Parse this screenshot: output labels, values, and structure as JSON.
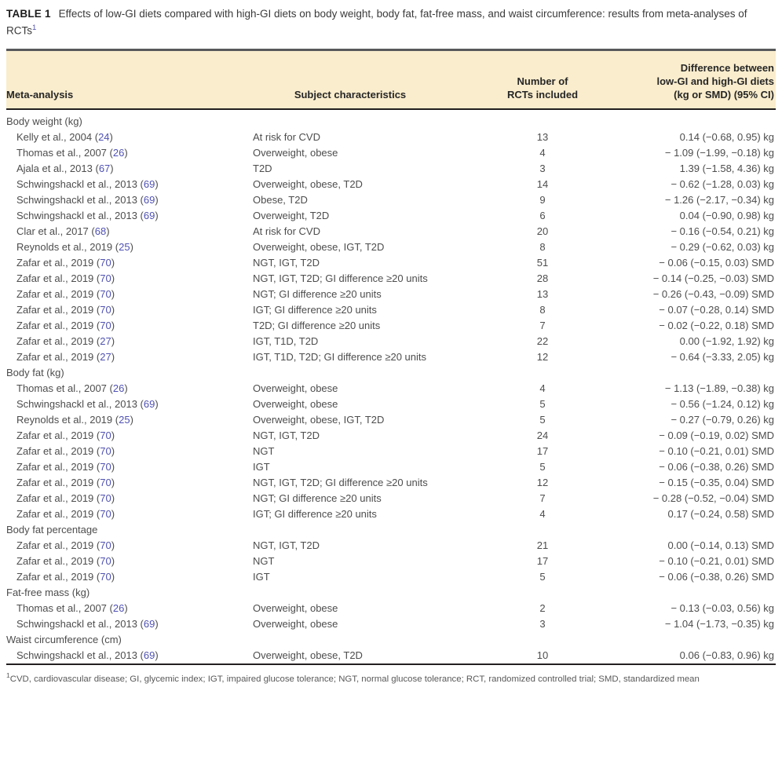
{
  "caption": {
    "label": "TABLE 1",
    "text": "Effects of low-GI diets compared with high-GI diets on body weight, body fat, fat-free mass, and waist circumference: results from meta-analyses of RCTs",
    "footnote_ref": "1"
  },
  "table": {
    "columns": [
      "Meta-analysis",
      "Subject characteristics",
      "Number of\nRCTs included",
      "Difference between\nlow-GI and high-GI diets\n(kg or SMD) (95% CI)"
    ],
    "sections": [
      {
        "header": "Body weight (kg)",
        "rows": [
          {
            "study": "Kelly et al., 2004",
            "ref": "24",
            "subjects": "At risk for CVD",
            "n_rcts": "13",
            "difference": "0.14 (−0.68, 0.95) kg"
          },
          {
            "study": "Thomas et al., 2007",
            "ref": "26",
            "subjects": "Overweight, obese",
            "n_rcts": "4",
            "difference": "− 1.09 (−1.99, −0.18) kg"
          },
          {
            "study": "Ajala et al., 2013",
            "ref": "67",
            "subjects": "T2D",
            "n_rcts": "3",
            "difference": "1.39 (−1.58, 4.36) kg"
          },
          {
            "study": "Schwingshackl et al., 2013",
            "ref": "69",
            "subjects": "Overweight, obese, T2D",
            "n_rcts": "14",
            "difference": "− 0.62 (−1.28, 0.03) kg"
          },
          {
            "study": "Schwingshackl et al., 2013",
            "ref": "69",
            "subjects": "Obese, T2D",
            "n_rcts": "9",
            "difference": "− 1.26 (−2.17, −0.34) kg"
          },
          {
            "study": "Schwingshackl et al., 2013",
            "ref": "69",
            "subjects": "Overweight, T2D",
            "n_rcts": "6",
            "difference": "0.04 (−0.90, 0.98) kg"
          },
          {
            "study": "Clar et al., 2017",
            "ref": "68",
            "subjects": "At risk for CVD",
            "n_rcts": "20",
            "difference": "− 0.16 (−0.54, 0.21) kg"
          },
          {
            "study": "Reynolds et al., 2019",
            "ref": "25",
            "subjects": "Overweight, obese, IGT, T2D",
            "n_rcts": "8",
            "difference": "− 0.29 (−0.62, 0.03) kg"
          },
          {
            "study": "Zafar et al., 2019",
            "ref": "70",
            "subjects": "NGT, IGT, T2D",
            "n_rcts": "51",
            "difference": "− 0.06 (−0.15, 0.03) SMD"
          },
          {
            "study": "Zafar et al., 2019",
            "ref": "70",
            "subjects": "NGT, IGT, T2D; GI difference ≥20 units",
            "n_rcts": "28",
            "difference": "− 0.14 (−0.25, −0.03) SMD"
          },
          {
            "study": "Zafar et al., 2019",
            "ref": "70",
            "subjects": "NGT; GI difference ≥20 units",
            "n_rcts": "13",
            "difference": "− 0.26 (−0.43, −0.09) SMD"
          },
          {
            "study": "Zafar et al., 2019",
            "ref": "70",
            "subjects": "IGT; GI difference ≥20 units",
            "n_rcts": "8",
            "difference": "− 0.07 (−0.28, 0.14) SMD"
          },
          {
            "study": "Zafar et al., 2019",
            "ref": "70",
            "subjects": "T2D; GI difference ≥20 units",
            "n_rcts": "7",
            "difference": "− 0.02 (−0.22, 0.18) SMD"
          },
          {
            "study": "Zafar et al., 2019",
            "ref": "27",
            "subjects": "IGT, T1D, T2D",
            "n_rcts": "22",
            "difference": "0.00 (−1.92, 1.92) kg"
          },
          {
            "study": "Zafar et al., 2019",
            "ref": "27",
            "subjects": "IGT, T1D, T2D; GI difference ≥20 units",
            "n_rcts": "12",
            "difference": "− 0.64 (−3.33, 2.05) kg"
          }
        ]
      },
      {
        "header": "Body fat (kg)",
        "rows": [
          {
            "study": "Thomas et al., 2007",
            "ref": "26",
            "subjects": "Overweight, obese",
            "n_rcts": "4",
            "difference": "− 1.13 (−1.89, −0.38) kg"
          },
          {
            "study": "Schwingshackl et al., 2013",
            "ref": "69",
            "subjects": "Overweight, obese",
            "n_rcts": "5",
            "difference": "− 0.56 (−1.24, 0.12) kg"
          },
          {
            "study": "Reynolds et al., 2019",
            "ref": "25",
            "subjects": "Overweight, obese, IGT, T2D",
            "n_rcts": "5",
            "difference": "− 0.27 (−0.79, 0.26) kg"
          },
          {
            "study": "Zafar et al., 2019",
            "ref": "70",
            "subjects": "NGT, IGT, T2D",
            "n_rcts": "24",
            "difference": "− 0.09 (−0.19, 0.02) SMD"
          },
          {
            "study": "Zafar et al., 2019",
            "ref": "70",
            "subjects": "NGT",
            "n_rcts": "17",
            "difference": "− 0.10 (−0.21, 0.01) SMD"
          },
          {
            "study": "Zafar et al., 2019",
            "ref": "70",
            "subjects": "IGT",
            "n_rcts": "5",
            "difference": "− 0.06 (−0.38, 0.26) SMD"
          },
          {
            "study": "Zafar et al., 2019",
            "ref": "70",
            "subjects": "NGT, IGT, T2D; GI difference ≥20 units",
            "n_rcts": "12",
            "difference": "− 0.15 (−0.35, 0.04) SMD"
          },
          {
            "study": "Zafar et al., 2019",
            "ref": "70",
            "subjects": "NGT; GI difference ≥20 units",
            "n_rcts": "7",
            "difference": "− 0.28 (−0.52, −0.04) SMD"
          },
          {
            "study": "Zafar et al., 2019",
            "ref": "70",
            "subjects": "IGT; GI difference ≥20 units",
            "n_rcts": "4",
            "difference": "0.17 (−0.24, 0.58) SMD"
          }
        ]
      },
      {
        "header": "Body fat percentage",
        "rows": [
          {
            "study": "Zafar et al., 2019",
            "ref": "70",
            "subjects": "NGT, IGT, T2D",
            "n_rcts": "21",
            "difference": "0.00 (−0.14, 0.13) SMD"
          },
          {
            "study": "Zafar et al., 2019",
            "ref": "70",
            "subjects": "NGT",
            "n_rcts": "17",
            "difference": "− 0.10 (−0.21, 0.01) SMD"
          },
          {
            "study": "Zafar et al., 2019",
            "ref": "70",
            "subjects": "IGT",
            "n_rcts": "5",
            "difference": "− 0.06 (−0.38, 0.26) SMD"
          }
        ]
      },
      {
        "header": "Fat-free mass (kg)",
        "rows": [
          {
            "study": "Thomas et al., 2007",
            "ref": "26",
            "subjects": "Overweight, obese",
            "n_rcts": "2",
            "difference": "− 0.13 (−0.03, 0.56) kg"
          },
          {
            "study": "Schwingshackl et al., 2013",
            "ref": "69",
            "subjects": "Overweight, obese",
            "n_rcts": "3",
            "difference": "− 1.04 (−1.73, −0.35) kg"
          }
        ]
      },
      {
        "header": "Waist circumference (cm)",
        "rows": [
          {
            "study": "Schwingshackl et al., 2013",
            "ref": "69",
            "subjects": "Overweight, obese, T2D",
            "n_rcts": "10",
            "difference": "0.06 (−0.83, 0.96) kg"
          }
        ]
      }
    ]
  },
  "footnote": {
    "ref": "1",
    "text": "CVD, cardiovascular disease; GI, glycemic index; IGT, impaired glucose tolerance; NGT, normal glucose tolerance; RCT, randomized controlled trial; SMD, standardized mean"
  },
  "colors": {
    "header_bg": "#faedcd",
    "rule_top": "#58595b",
    "rule_dark": "#231f20",
    "link": "#4f51b3",
    "body_text": "#4d4d4d",
    "header_text": "#262626",
    "footnote_text": "#595959"
  }
}
